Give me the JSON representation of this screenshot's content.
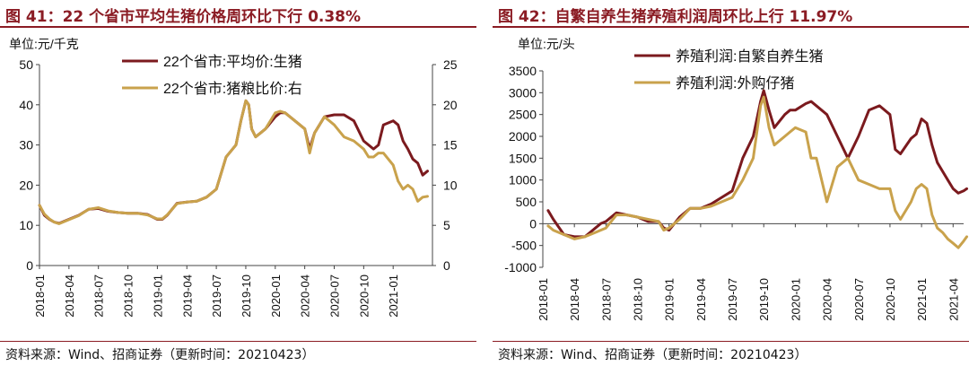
{
  "left": {
    "title": "图 41：22 个省市平均生猪价格周环比下行 0.38%",
    "source": "资料来源：Wind、招商证券（更新时间：20210423）",
    "chart_data": {
      "type": "line",
      "unit_label": "单位:元/千克",
      "ylim": [
        0,
        50
      ],
      "yticks": [
        0,
        10,
        20,
        30,
        40,
        50
      ],
      "y2lim": [
        0,
        25
      ],
      "y2ticks": [
        0,
        5,
        10,
        15,
        20,
        25
      ],
      "xlim": [
        0,
        40
      ],
      "xticks": [
        {
          "label": "2018-01",
          "x": 0
        },
        {
          "label": "2018-04",
          "x": 3
        },
        {
          "label": "2018-07",
          "x": 6
        },
        {
          "label": "2018-10",
          "x": 9
        },
        {
          "label": "2019-01",
          "x": 12
        },
        {
          "label": "2019-04",
          "x": 15
        },
        {
          "label": "2019-07",
          "x": 18
        },
        {
          "label": "2019-10",
          "x": 21
        },
        {
          "label": "2020-01",
          "x": 24
        },
        {
          "label": "2020-04",
          "x": 27
        },
        {
          "label": "2020-07",
          "x": 30
        },
        {
          "label": "2020-10",
          "x": 33
        },
        {
          "label": "2021-01",
          "x": 36
        }
      ],
      "series": [
        {
          "name": "22个省市:平均价:生猪",
          "color": "#7B1A1E",
          "axis": "left",
          "x": [
            0,
            0.5,
            1,
            1.5,
            2,
            3,
            4,
            5,
            6,
            7,
            8,
            9,
            10,
            11,
            12,
            12.5,
            13,
            14,
            15,
            16,
            17,
            18,
            19,
            20,
            20.5,
            21,
            21.3,
            21.6,
            22,
            22.5,
            23,
            24,
            24.5,
            25,
            26,
            27,
            27.5,
            28,
            29,
            30,
            31,
            32,
            33,
            33.5,
            34,
            34.5,
            35,
            36,
            36.5,
            37,
            37.5,
            38,
            38.5,
            39,
            39.5
          ],
          "values": [
            15,
            12.5,
            11.5,
            10.8,
            10.5,
            11.5,
            12.5,
            14,
            14.2,
            13.5,
            13.2,
            13,
            13,
            12.7,
            11.5,
            11.5,
            12.5,
            15.5,
            15.8,
            16,
            17,
            19,
            27,
            30,
            36,
            41,
            40,
            34,
            32,
            33,
            34,
            37,
            38,
            38,
            36,
            34,
            29,
            33,
            37,
            37.5,
            37.5,
            36,
            31,
            30,
            29,
            30,
            35,
            36,
            35,
            31,
            29,
            26.5,
            25.5,
            22.5,
            23.5
          ]
        },
        {
          "name": "22个省市:猪粮比价:右",
          "color": "#C9A24C",
          "axis": "right",
          "x": [
            0,
            0.5,
            1,
            1.5,
            2,
            3,
            4,
            5,
            6,
            7,
            8,
            9,
            10,
            11,
            12,
            12.5,
            13,
            14,
            15,
            16,
            17,
            18,
            19,
            20,
            20.5,
            21,
            21.3,
            21.6,
            22,
            22.5,
            23,
            24,
            24.5,
            25,
            26,
            27,
            27.5,
            28,
            29,
            30,
            31,
            32,
            33,
            33.5,
            34,
            34.5,
            35,
            36,
            36.5,
            37,
            37.5,
            38,
            38.5,
            39,
            39.5
          ],
          "values": [
            7.5,
            6.4,
            5.8,
            5.4,
            5.2,
            5.7,
            6.2,
            7,
            7.2,
            6.8,
            6.6,
            6.5,
            6.5,
            6.3,
            5.8,
            5.8,
            6.3,
            7.7,
            7.9,
            8,
            8.5,
            9.5,
            13.5,
            15,
            18,
            20.5,
            20,
            17,
            16,
            16.5,
            17,
            19,
            19.2,
            19,
            18,
            17,
            14,
            16.5,
            18.5,
            17.5,
            16,
            15.5,
            14.5,
            13.5,
            13.5,
            14,
            14,
            12.5,
            10.5,
            9.5,
            10,
            9.5,
            8,
            8.5,
            8.6
          ]
        }
      ]
    }
  },
  "right": {
    "title": "图 42：自繁自养生猪养殖利润周环比上行 11.97%",
    "source": "资料来源：Wind、招商证券（更新时间：20210423）",
    "chart_data": {
      "type": "line",
      "unit_label": "单位:元/头",
      "ylim": [
        -1000,
        3500
      ],
      "yticks": [
        -1000,
        -500,
        0,
        500,
        1000,
        1500,
        2000,
        2500,
        3000,
        3500
      ],
      "xlim": [
        0,
        40
      ],
      "xticks": [
        {
          "label": "2018-01",
          "x": 0
        },
        {
          "label": "2018-04",
          "x": 3
        },
        {
          "label": "2018-07",
          "x": 6
        },
        {
          "label": "2018-10",
          "x": 9
        },
        {
          "label": "2019-01",
          "x": 12
        },
        {
          "label": "2019-04",
          "x": 15
        },
        {
          "label": "2019-07",
          "x": 18
        },
        {
          "label": "2019-10",
          "x": 21
        },
        {
          "label": "2020-01",
          "x": 24
        },
        {
          "label": "2020-04",
          "x": 27
        },
        {
          "label": "2020-07",
          "x": 30
        },
        {
          "label": "2020-10",
          "x": 33
        },
        {
          "label": "2021-01",
          "x": 36
        },
        {
          "label": "2021-04",
          "x": 39
        }
      ],
      "series": [
        {
          "name": "养殖利润:自繁自养生猪",
          "color": "#7B1A1E",
          "x": [
            0.5,
            1,
            2,
            3,
            4,
            5,
            5.5,
            6,
            7,
            8,
            9,
            10,
            11,
            11.5,
            12,
            12.5,
            13,
            14,
            15,
            16,
            17,
            18,
            19,
            20,
            20.7,
            21,
            21.5,
            22,
            23,
            23.5,
            24,
            25,
            25.5,
            26,
            27,
            28,
            29,
            30,
            31,
            32,
            33,
            33.5,
            34,
            35,
            35.5,
            36,
            36.5,
            37,
            37.5,
            38,
            38.5,
            39,
            39.5,
            40,
            40.3
          ],
          "values": [
            300,
            100,
            -250,
            -300,
            -300,
            -100,
            0,
            50,
            250,
            200,
            150,
            50,
            50,
            -100,
            -150,
            0,
            150,
            350,
            350,
            450,
            600,
            750,
            1500,
            2000,
            2800,
            3050,
            2600,
            2200,
            2500,
            2600,
            2600,
            2750,
            2800,
            2700,
            2500,
            2000,
            1500,
            2000,
            2600,
            2700,
            2500,
            1700,
            1600,
            1950,
            2050,
            2400,
            2300,
            1800,
            1400,
            1200,
            1000,
            800,
            700,
            750,
            800
          ]
        },
        {
          "name": "养殖利润:外购仔猪",
          "color": "#C9A24C",
          "x": [
            0.5,
            1,
            2,
            3,
            4,
            5,
            5.5,
            6,
            7,
            8,
            9,
            10,
            11,
            11.5,
            12,
            12.5,
            13,
            14,
            15,
            16,
            17,
            18,
            19,
            20,
            20.7,
            21,
            21.5,
            22,
            23,
            23.5,
            24,
            25,
            25.5,
            26,
            27,
            28,
            29,
            30,
            31,
            32,
            33,
            33.5,
            34,
            35,
            35.5,
            36,
            36.5,
            37,
            37.5,
            38,
            38.5,
            39,
            39.5,
            40,
            40.3
          ],
          "values": [
            -50,
            -150,
            -250,
            -350,
            -300,
            -200,
            -150,
            -100,
            200,
            200,
            150,
            100,
            50,
            -150,
            -100,
            0,
            100,
            350,
            350,
            400,
            500,
            600,
            1000,
            1500,
            2700,
            2900,
            2200,
            1800,
            2000,
            2100,
            2200,
            2100,
            1500,
            1500,
            500,
            1300,
            1500,
            1000,
            900,
            800,
            800,
            300,
            100,
            500,
            800,
            900,
            800,
            200,
            -100,
            -200,
            -350,
            -450,
            -550,
            -400,
            -300
          ]
        }
      ]
    }
  }
}
